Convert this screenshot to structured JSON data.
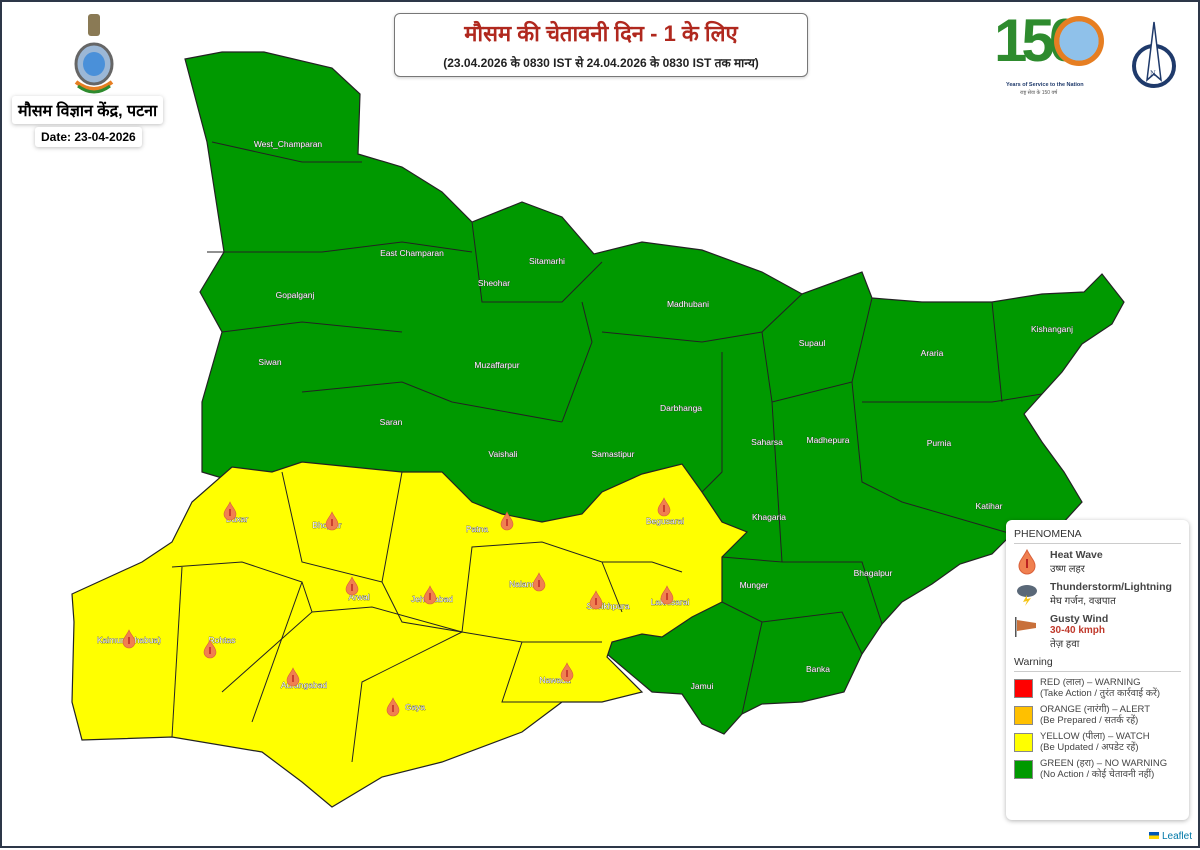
{
  "header": {
    "title": "मौसम की चेतावनी दिन - 1 के लिए",
    "validity": "(23.04.2026 के 0830 IST से 24.04.2026 के 0830 IST तक मान्य)",
    "organization": "मौसम विज्ञान केंद्र, पटना",
    "date": "Date: 23-04-2026"
  },
  "logos": {
    "imd_150": "150",
    "imd_150_tagline": "Years of Service to the Nation",
    "imd_150_tagline_hi": "राष्ट्र सेवा के 150 वर्ष",
    "north_arrow": "N"
  },
  "colors": {
    "red": "#ff0000",
    "orange": "#ffc000",
    "yellow": "#ffff00",
    "green": "#009900"
  },
  "districts": [
    {
      "name": "West_Champaran",
      "warning": "green"
    },
    {
      "name": "East Champaran",
      "warning": "green"
    },
    {
      "name": "Sheohar",
      "warning": "green"
    },
    {
      "name": "Sitamarhi",
      "warning": "green"
    },
    {
      "name": "Madhubani",
      "warning": "green"
    },
    {
      "name": "Supaul",
      "warning": "green"
    },
    {
      "name": "Araria",
      "warning": "green"
    },
    {
      "name": "Kishanganj",
      "warning": "green"
    },
    {
      "name": "Gopalganj",
      "warning": "green"
    },
    {
      "name": "Siwan",
      "warning": "green"
    },
    {
      "name": "Saran",
      "warning": "green"
    },
    {
      "name": "Muzaffarpur",
      "warning": "green"
    },
    {
      "name": "Darbhanga",
      "warning": "green"
    },
    {
      "name": "Vaishali",
      "warning": "green"
    },
    {
      "name": "Samastipur",
      "warning": "green"
    },
    {
      "name": "Saharsa",
      "warning": "green"
    },
    {
      "name": "Madhepura",
      "warning": "green"
    },
    {
      "name": "Purnia",
      "warning": "green"
    },
    {
      "name": "Katihar",
      "warning": "green"
    },
    {
      "name": "Khagaria",
      "warning": "green"
    },
    {
      "name": "Munger",
      "warning": "green"
    },
    {
      "name": "Bhagalpur",
      "warning": "green"
    },
    {
      "name": "Jamui",
      "warning": "green"
    },
    {
      "name": "Banka",
      "warning": "green"
    },
    {
      "name": "Buxar",
      "warning": "yellow",
      "heat_wave": true
    },
    {
      "name": "Bhojpur",
      "warning": "yellow",
      "heat_wave": true
    },
    {
      "name": "Patna",
      "warning": "yellow",
      "heat_wave": true
    },
    {
      "name": "Begusarai",
      "warning": "yellow",
      "heat_wave": true
    },
    {
      "name": "Arwal",
      "warning": "yellow",
      "heat_wave": true
    },
    {
      "name": "Jehanabad",
      "warning": "yellow",
      "heat_wave": true
    },
    {
      "name": "Nalanda",
      "warning": "yellow",
      "heat_wave": true
    },
    {
      "name": "Sheikhpura",
      "warning": "yellow",
      "heat_wave": true
    },
    {
      "name": "Lakhisarai",
      "warning": "yellow",
      "heat_wave": true
    },
    {
      "name": "Kaimur (Bhabua)",
      "warning": "yellow",
      "heat_wave": true
    },
    {
      "name": "Rohtas",
      "warning": "yellow",
      "heat_wave": true
    },
    {
      "name": "Aurangabad",
      "warning": "yellow",
      "heat_wave": true
    },
    {
      "name": "Gaya",
      "warning": "yellow",
      "heat_wave": true
    },
    {
      "name": "Nawada",
      "warning": "yellow",
      "heat_wave": true
    }
  ],
  "legend": {
    "phenomena_title": "PHENOMENA",
    "phenomena": [
      {
        "icon": "heat-wave-icon",
        "label": "Heat Wave",
        "label_hi": "उष्ण लहर"
      },
      {
        "icon": "thunderstorm-icon",
        "label": "Thunderstorm/Lightning",
        "label_hi": "मेघ गर्जन, वज्रपात"
      },
      {
        "icon": "windsock-icon",
        "label": "Gusty Wind",
        "speed": "30-40 kmph",
        "label_hi": "तेज़ हवा"
      }
    ],
    "warning_title": "Warning",
    "warnings": [
      {
        "color": "#ff0000",
        "line1": "RED (लाल) – WARNING",
        "line2": "(Take Action / तुरंत कार्रवाई करें)"
      },
      {
        "color": "#ffc000",
        "line1": "ORANGE (नारंगी) – ALERT",
        "line2": "(Be Prepared / सतर्क रहें)"
      },
      {
        "color": "#ffff00",
        "line1": "YELLOW (पीला) – WATCH",
        "line2": "(Be Updated / अपडेट रहें)"
      },
      {
        "color": "#009900",
        "line1": "GREEN (हरा) – NO WARNING",
        "line2": "(No Action / कोई चेतावनी नहीं)"
      }
    ]
  },
  "attribution": "Leaflet"
}
